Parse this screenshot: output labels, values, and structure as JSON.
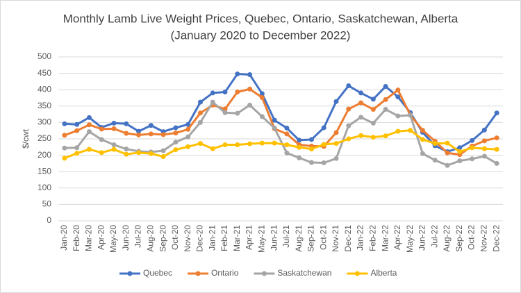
{
  "chart_data": {
    "type": "line",
    "title": "Monthly Lamb Live Weight Prices, Quebec, Ontario, Saskatchewan, Alberta",
    "subtitle": "(January 2020 to December 2022)",
    "y_label": "$/cwt",
    "categories": [
      "Jan-20",
      "Feb-20",
      "Mar-20",
      "Apr-20",
      "May-20",
      "Jun-20",
      "Jul-20",
      "Aug-20",
      "Sep-20",
      "Oct-20",
      "Nov-20",
      "Dec-20",
      "Jan-21",
      "Feb-21",
      "Mar-21",
      "Apr-21",
      "May-21",
      "Jun-21",
      "Jul-21",
      "Aug-21",
      "Sep-21",
      "Oct-21",
      "Nov-21",
      "Dec-21",
      "Jan-22",
      "Feb-22",
      "Mar-22",
      "Apr-22",
      "May-22",
      "Jun-22",
      "Jul-22",
      "Aug-22",
      "Sep-22",
      "Oct-22",
      "Nov-22",
      "Dec-22"
    ],
    "series": [
      {
        "name": "Quebec",
        "color": "#4472c4",
        "values": [
          296,
          294,
          315,
          285,
          298,
          296,
          273,
          291,
          272,
          284,
          294,
          362,
          390,
          393,
          448,
          446,
          388,
          307,
          283,
          246,
          248,
          284,
          364,
          412,
          390,
          371,
          410,
          378,
          330,
          270,
          229,
          211,
          223,
          245,
          277,
          329
        ]
      },
      {
        "name": "Ontario",
        "color": "#ed7d31",
        "values": [
          261,
          275,
          293,
          280,
          281,
          267,
          262,
          265,
          263,
          268,
          279,
          329,
          353,
          341,
          393,
          402,
          376,
          281,
          265,
          232,
          228,
          227,
          269,
          341,
          360,
          340,
          370,
          399,
          323,
          276,
          243,
          207,
          202,
          228,
          244,
          253
        ]
      },
      {
        "name": "Saskatchewan",
        "color": "#a5a5a5",
        "values": [
          222,
          223,
          272,
          248,
          232,
          219,
          212,
          210,
          214,
          240,
          256,
          300,
          362,
          330,
          328,
          353,
          318,
          283,
          207,
          192,
          178,
          177,
          190,
          290,
          316,
          298,
          340,
          320,
          322,
          205,
          185,
          169,
          183,
          189,
          197,
          175
        ]
      },
      {
        "name": "Alberta",
        "color": "#ffc000",
        "values": [
          191,
          206,
          218,
          208,
          218,
          203,
          208,
          205,
          196,
          217,
          226,
          236,
          220,
          232,
          232,
          235,
          237,
          237,
          232,
          224,
          219,
          233,
          236,
          250,
          260,
          255,
          259,
          273,
          276,
          248,
          236,
          237,
          211,
          223,
          220,
          218
        ]
      }
    ],
    "ylim": [
      0,
      500
    ],
    "yticks": [
      0,
      50,
      100,
      150,
      200,
      250,
      300,
      350,
      400,
      450,
      500
    ],
    "grid": true,
    "legend": "bottom"
  }
}
